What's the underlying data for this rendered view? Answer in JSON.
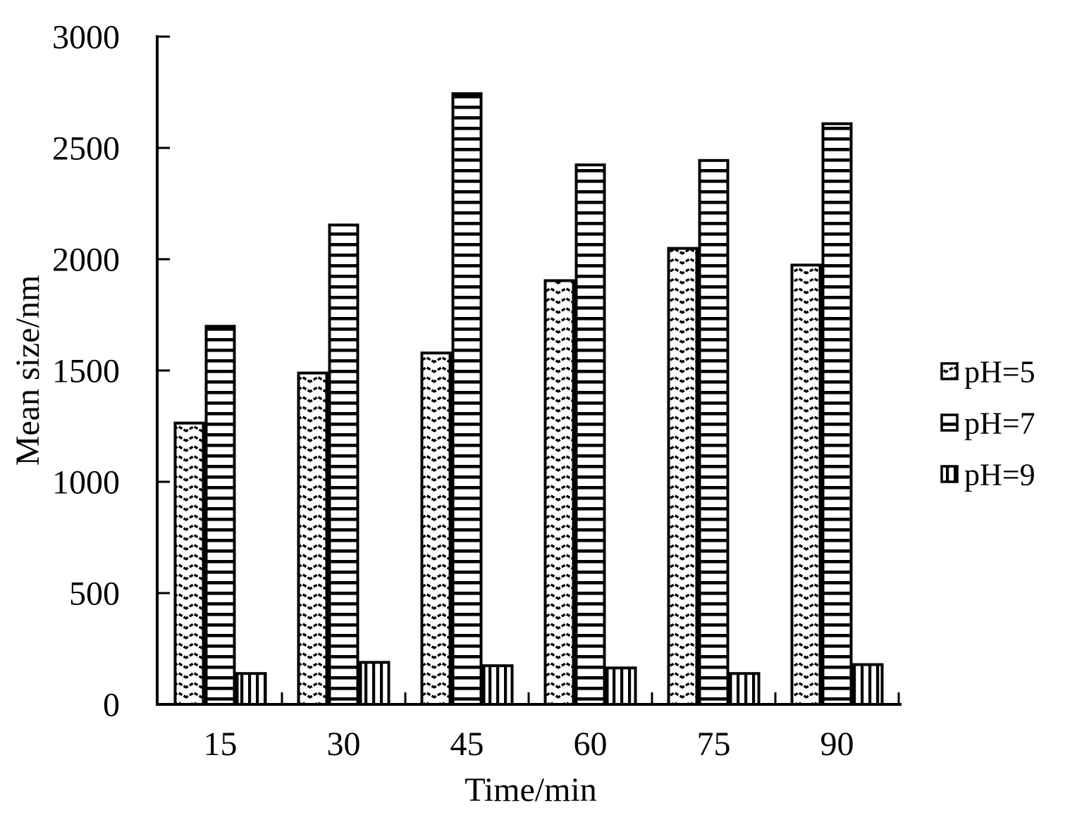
{
  "chart_data": {
    "type": "bar",
    "title": "",
    "xlabel": "Time/min",
    "ylabel": "Mean size/nm",
    "categories": [
      "15",
      "30",
      "45",
      "60",
      "75",
      "90"
    ],
    "series": [
      {
        "name": "pH=5",
        "pattern": "zigzag",
        "values": [
          1270,
          1495,
          1585,
          1910,
          2055,
          1980
        ]
      },
      {
        "name": "pH=7",
        "pattern": "horizontal-lines",
        "values": [
          1705,
          2160,
          2750,
          2430,
          2450,
          2615
        ]
      },
      {
        "name": "pH=9",
        "pattern": "vertical-lines",
        "values": [
          145,
          195,
          180,
          170,
          145,
          185
        ]
      }
    ],
    "ylim": [
      0,
      3000
    ],
    "yticks": [
      0,
      500,
      1000,
      1500,
      2000,
      2500,
      3000
    ],
    "grid": false,
    "legend_position": "right",
    "bar_outline_color": "#000000",
    "pattern_color": "#000000",
    "background": "#ffffff"
  }
}
